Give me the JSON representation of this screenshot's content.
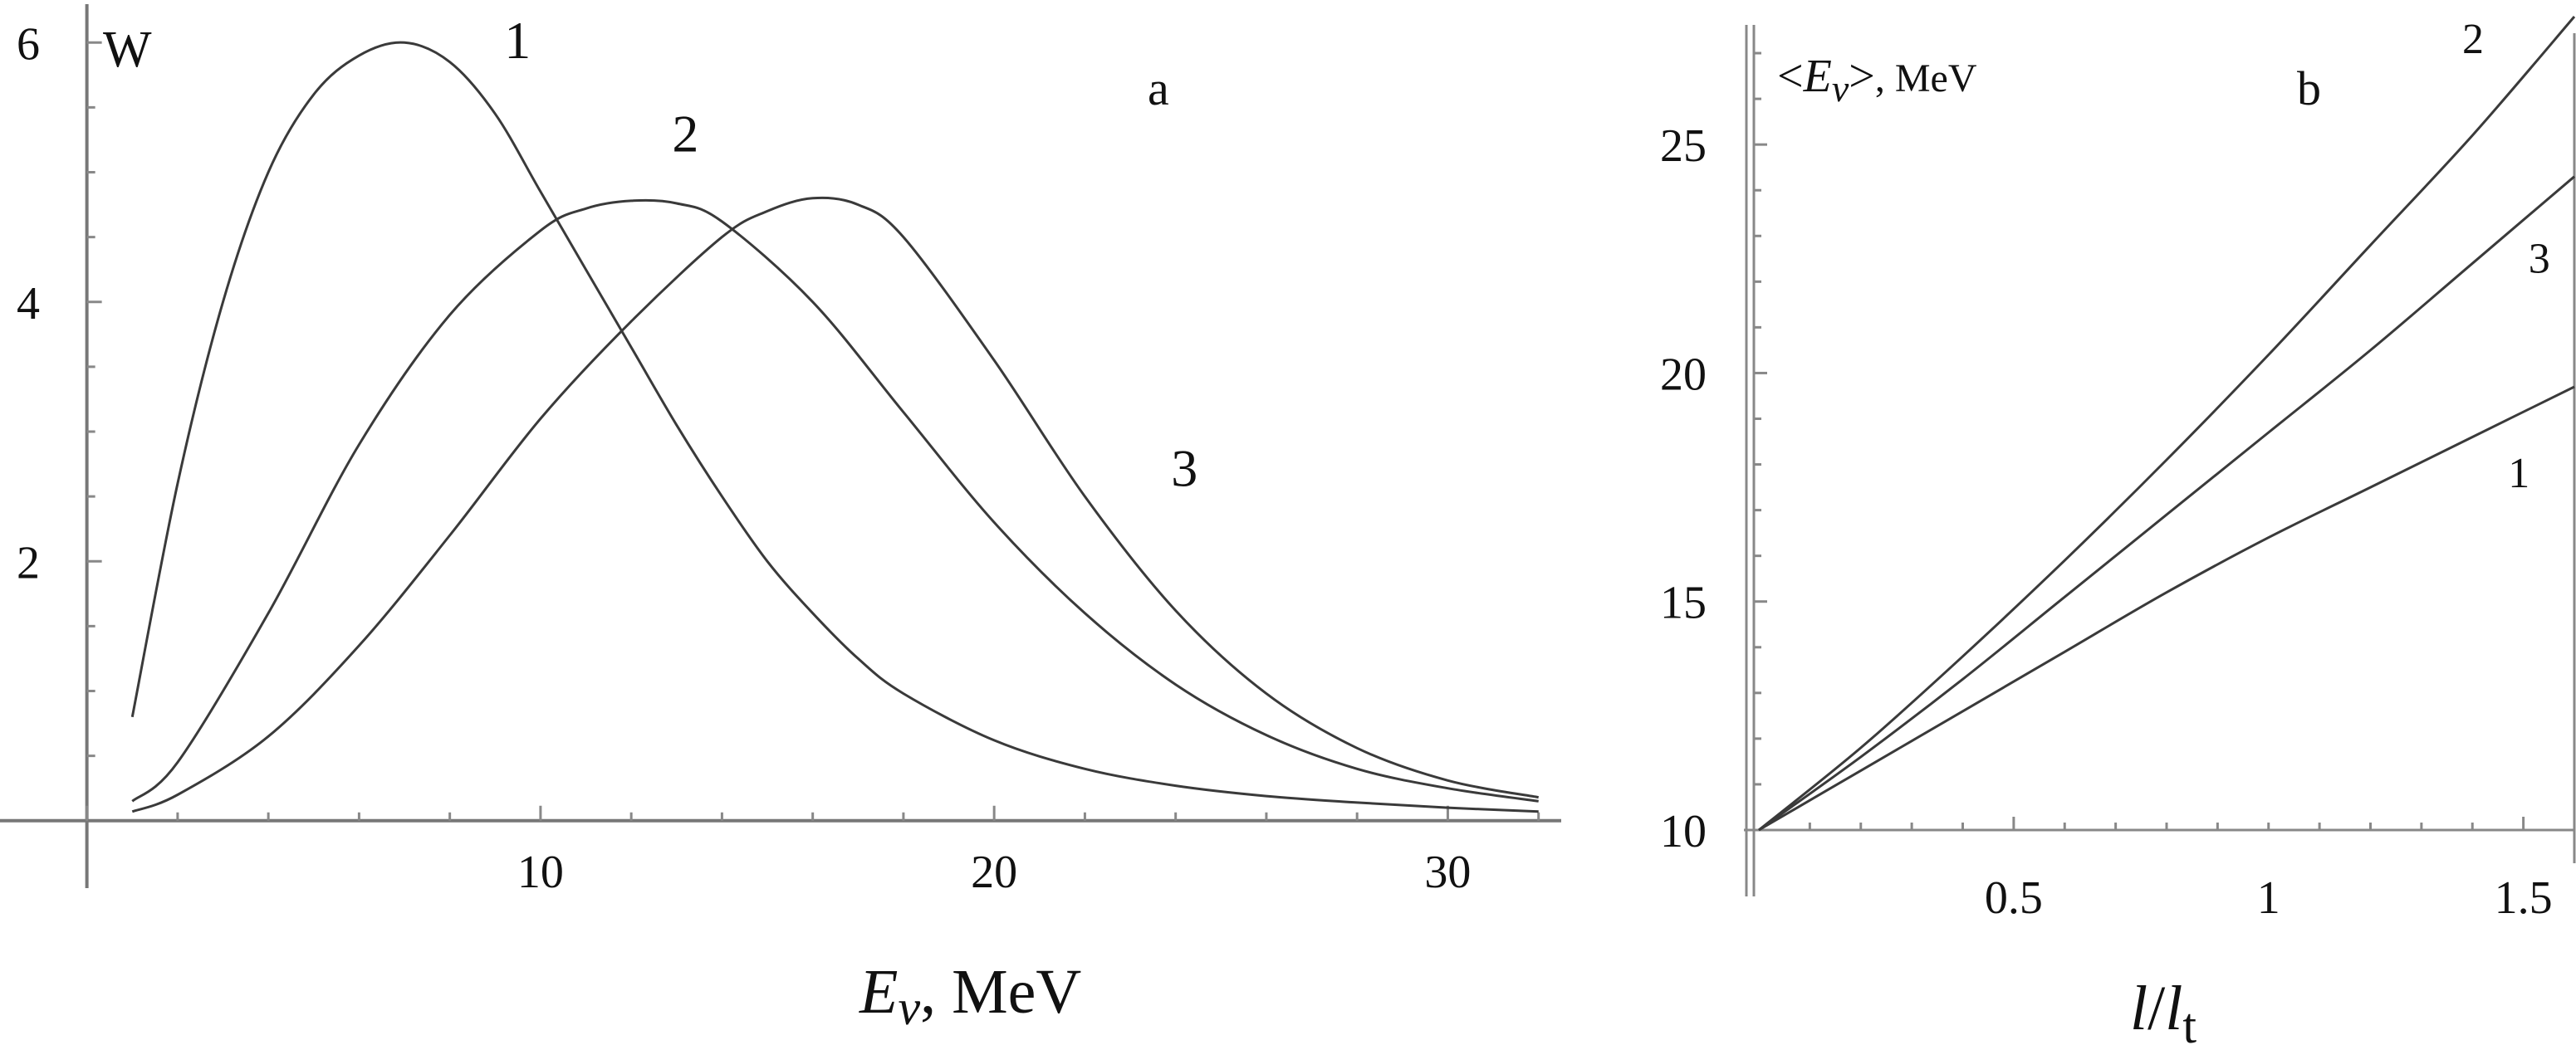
{
  "chart_data": [
    {
      "panel": "a",
      "type": "line",
      "ylabel": "W",
      "xlabel_symbol": "E",
      "xlabel_sub": "ν",
      "xlabel_rest": ", MeV",
      "xlim": [
        -1,
        32.5
      ],
      "ylim": [
        -0.2,
        6.2
      ],
      "x_ticks": [
        {
          "value": 10,
          "label": "10"
        },
        {
          "value": 20,
          "label": "20"
        },
        {
          "value": 30,
          "label": "30"
        }
      ],
      "y_ticks": [
        {
          "value": 2,
          "label": "2"
        },
        {
          "value": 4,
          "label": "4"
        },
        {
          "value": 6,
          "label": "6"
        }
      ],
      "series": [
        {
          "name": "1",
          "x": [
            1,
            2,
            3,
            4,
            5,
            6,
            7,
            8,
            9,
            10,
            11,
            12,
            13,
            14,
            15,
            16,
            17,
            18,
            20,
            22,
            24,
            26,
            28,
            30,
            32
          ],
          "y": [
            0.8,
            2.6,
            4.0,
            5.0,
            5.6,
            5.9,
            6.0,
            5.85,
            5.45,
            4.85,
            4.25,
            3.65,
            3.05,
            2.5,
            2.0,
            1.6,
            1.25,
            0.98,
            0.62,
            0.4,
            0.27,
            0.19,
            0.14,
            0.1,
            0.07
          ]
        },
        {
          "name": "2",
          "x": [
            1,
            2,
            4,
            6,
            8,
            10,
            11,
            12,
            13,
            14,
            16,
            18,
            20,
            22,
            24,
            26,
            28,
            30,
            32
          ],
          "y": [
            0.15,
            0.45,
            1.6,
            2.9,
            3.9,
            4.55,
            4.72,
            4.78,
            4.76,
            4.62,
            4.0,
            3.15,
            2.3,
            1.6,
            1.05,
            0.66,
            0.4,
            0.25,
            0.15
          ]
        },
        {
          "name": "3",
          "x": [
            1,
            2,
            4,
            6,
            8,
            10,
            12,
            14,
            15,
            16,
            17,
            18,
            20,
            22,
            24,
            26,
            28,
            30,
            32
          ],
          "y": [
            0.07,
            0.2,
            0.65,
            1.35,
            2.2,
            3.1,
            3.85,
            4.5,
            4.7,
            4.8,
            4.75,
            4.5,
            3.55,
            2.5,
            1.62,
            0.98,
            0.56,
            0.31,
            0.18
          ]
        }
      ],
      "curve_labels": [
        {
          "text": "1",
          "x": 9.2,
          "y": 5.88
        },
        {
          "text": "2",
          "x": 12.9,
          "y": 5.16
        },
        {
          "text": "3",
          "x": 23.9,
          "y": 2.58
        }
      ]
    },
    {
      "panel": "b",
      "type": "line",
      "ylabel_symbol": "E",
      "ylabel_sub": "ν",
      "ylabel_rest": ", MeV",
      "xlabel_l": "l",
      "xlabel_lt": "l",
      "xlabel_sub": "t",
      "xlim": [
        0,
        1.6
      ],
      "ylim": [
        10,
        27.8
      ],
      "x_ticks": [
        {
          "value": 0.5,
          "label": "0.5"
        },
        {
          "value": 1,
          "label": "1"
        },
        {
          "value": 1.5,
          "label": "1.5"
        }
      ],
      "y_ticks": [
        {
          "value": 10,
          "label": "10"
        },
        {
          "value": 15,
          "label": "15"
        },
        {
          "value": 20,
          "label": "20"
        },
        {
          "value": 25,
          "label": "25"
        }
      ],
      "series": [
        {
          "name": "1",
          "x": [
            0,
            0.2,
            0.4,
            0.6,
            0.8,
            1.0,
            1.2,
            1.4,
            1.6
          ],
          "y": [
            10,
            11.3,
            12.6,
            13.9,
            15.2,
            16.4,
            17.5,
            18.6,
            19.7
          ]
        },
        {
          "name": "2",
          "x": [
            0,
            0.2,
            0.4,
            0.6,
            0.8,
            1.0,
            1.2,
            1.4,
            1.6
          ],
          "y": [
            10,
            11.8,
            13.8,
            15.9,
            18.1,
            20.4,
            22.8,
            25.2,
            27.8
          ]
        },
        {
          "name": "3",
          "x": [
            0,
            0.2,
            0.4,
            0.6,
            0.8,
            1.0,
            1.2,
            1.4,
            1.6
          ],
          "y": [
            10,
            11.6,
            13.3,
            15.1,
            16.9,
            18.7,
            20.5,
            22.4,
            24.3
          ]
        }
      ],
      "curve_labels": [
        {
          "text": "2",
          "x": 1.38,
          "y": 27.0
        },
        {
          "text": "3",
          "x": 1.51,
          "y": 22.2
        },
        {
          "text": "1",
          "x": 1.47,
          "y": 17.5
        }
      ]
    }
  ],
  "panel_letters": {
    "a": "a",
    "b": "b"
  }
}
